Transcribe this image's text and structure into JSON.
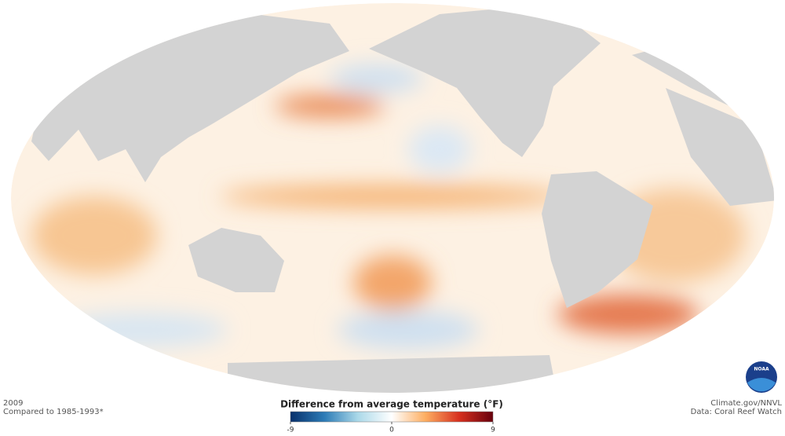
{
  "map": {
    "year": "2009",
    "baseline": "Compared to 1985-1993*",
    "credit": "Climate.gov/NNVL",
    "source": "Data: Coral Reef Watch",
    "logo": "NOAA"
  },
  "legend": {
    "title": "Difference from average temperature (°F)",
    "range": [
      -9,
      9
    ],
    "ticks": [
      -9,
      0,
      9
    ],
    "colors": [
      "#08306b",
      "#2c7bb6",
      "#abd9e9",
      "#ffffff",
      "#fdae61",
      "#d7301f",
      "#67000d"
    ]
  }
}
